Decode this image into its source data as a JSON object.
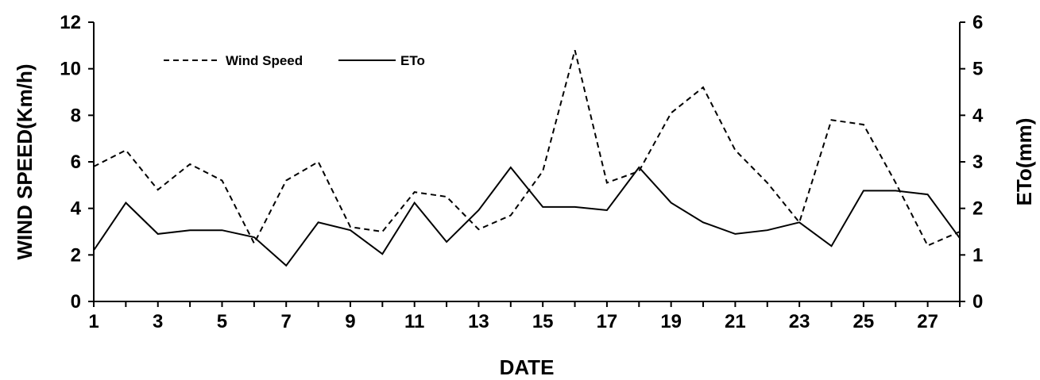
{
  "chart_data": {
    "type": "line",
    "xlabel": "DATE",
    "ylabel": "WIND SPEED(Km/h)",
    "y2label": "ETo(mm)",
    "x": [
      1,
      2,
      3,
      4,
      5,
      6,
      7,
      8,
      9,
      10,
      11,
      12,
      13,
      14,
      15,
      16,
      17,
      18,
      19,
      20,
      21,
      22,
      23,
      24,
      25,
      26,
      27,
      28
    ],
    "xlim": [
      1,
      28
    ],
    "xticks": [
      "1",
      "3",
      "5",
      "7",
      "9",
      "11",
      "13",
      "15",
      "17",
      "19",
      "21",
      "23",
      "25",
      "27"
    ],
    "ylim": [
      0,
      12
    ],
    "yticks": [
      "0",
      "2",
      "4",
      "6",
      "8",
      "10",
      "12"
    ],
    "y2lim": [
      0,
      6
    ],
    "y2ticks": [
      "0",
      "1",
      "2",
      "3",
      "4",
      "5",
      "6"
    ],
    "grid": false,
    "legend_position": "top-left",
    "series": [
      {
        "name": "Wind Speed",
        "axis": "left",
        "style": "dashed",
        "color": "#000000",
        "values": [
          5.8,
          6.5,
          4.8,
          5.9,
          5.2,
          2.5,
          5.2,
          6.0,
          3.2,
          3.0,
          4.7,
          4.5,
          3.1,
          3.7,
          5.6,
          10.8,
          5.1,
          5.6,
          8.1,
          9.2,
          6.5,
          5.1,
          3.4,
          7.8,
          7.6,
          5.1,
          2.4,
          3.0
        ]
      },
      {
        "name": "ETo",
        "axis": "right",
        "style": "solid",
        "color": "#000000",
        "values": [
          1.1,
          2.12,
          1.45,
          1.53,
          1.53,
          1.38,
          0.77,
          1.7,
          1.53,
          1.02,
          2.12,
          1.28,
          1.96,
          2.88,
          2.03,
          2.03,
          1.96,
          2.88,
          2.12,
          1.7,
          1.45,
          1.53,
          1.7,
          1.19,
          2.38,
          2.38,
          2.3,
          1.36
        ]
      }
    ]
  }
}
